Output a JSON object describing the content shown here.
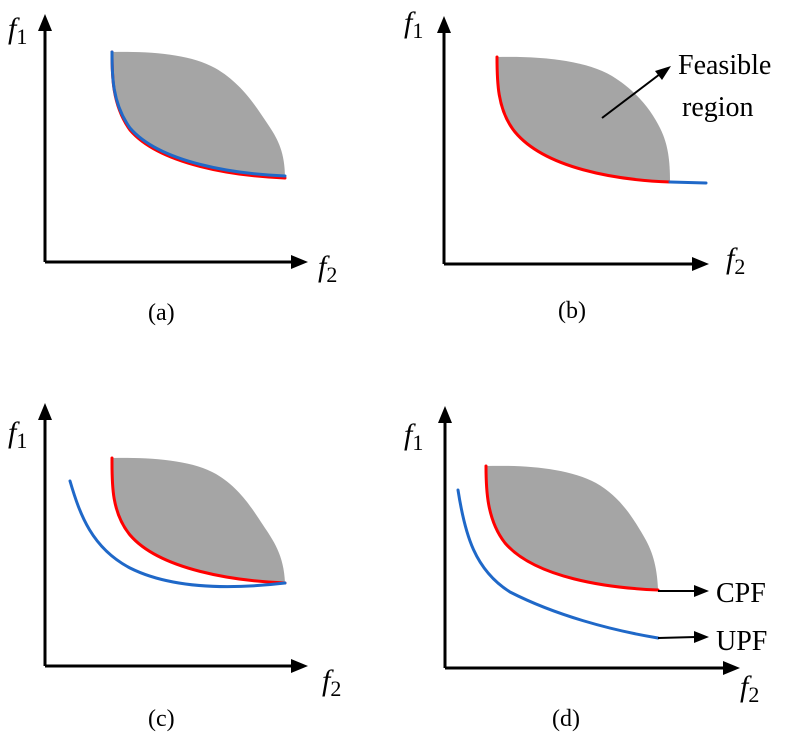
{
  "figure": {
    "panels": [
      {
        "id": "a",
        "caption": "(a)",
        "y_axis": {
          "var": "f",
          "sub": "1"
        },
        "x_axis": {
          "var": "f",
          "sub": "2"
        }
      },
      {
        "id": "b",
        "caption": "(b)",
        "y_axis": {
          "var": "f",
          "sub": "1"
        },
        "x_axis": {
          "var": "f",
          "sub": "2"
        },
        "callout_line1": "Feasible",
        "callout_line2": "region"
      },
      {
        "id": "c",
        "caption": "(c)",
        "y_axis": {
          "var": "f",
          "sub": "1"
        },
        "x_axis": {
          "var": "f",
          "sub": "2"
        }
      },
      {
        "id": "d",
        "caption": "(d)",
        "y_axis": {
          "var": "f",
          "sub": "1"
        },
        "x_axis": {
          "var": "f",
          "sub": "2"
        },
        "cpf_label": "CPF",
        "upf_label": "UPF"
      }
    ],
    "colors": {
      "feasible_region": "#a5a5a5",
      "constrained_front": "#ff0000",
      "unconstrained_front": "#1f68c8",
      "axes": "#000000"
    }
  }
}
